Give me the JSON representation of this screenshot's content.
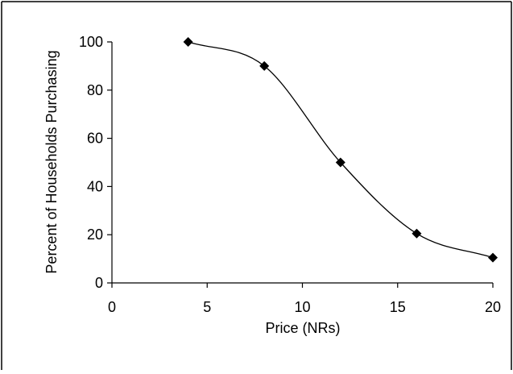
{
  "chart_data": {
    "type": "line",
    "title": "",
    "xlabel": "Price (NRs)",
    "ylabel": "Percent of Households Purchasing",
    "xlim": [
      0,
      20
    ],
    "ylim": [
      0,
      100
    ],
    "xticks": [
      "0",
      "5",
      "10",
      "15",
      "20"
    ],
    "yticks": [
      "0",
      "20",
      "40",
      "60",
      "80",
      "100"
    ],
    "grid": false,
    "legend": "none",
    "marker": "diamond",
    "series": [
      {
        "smooth": true,
        "color": "#000000",
        "points": [
          {
            "x": 4,
            "y": 100
          },
          {
            "x": 8,
            "y": 90
          },
          {
            "x": 12,
            "y": 50
          },
          {
            "x": 16,
            "y": 20.5
          },
          {
            "x": 20,
            "y": 10.5
          }
        ]
      }
    ]
  }
}
